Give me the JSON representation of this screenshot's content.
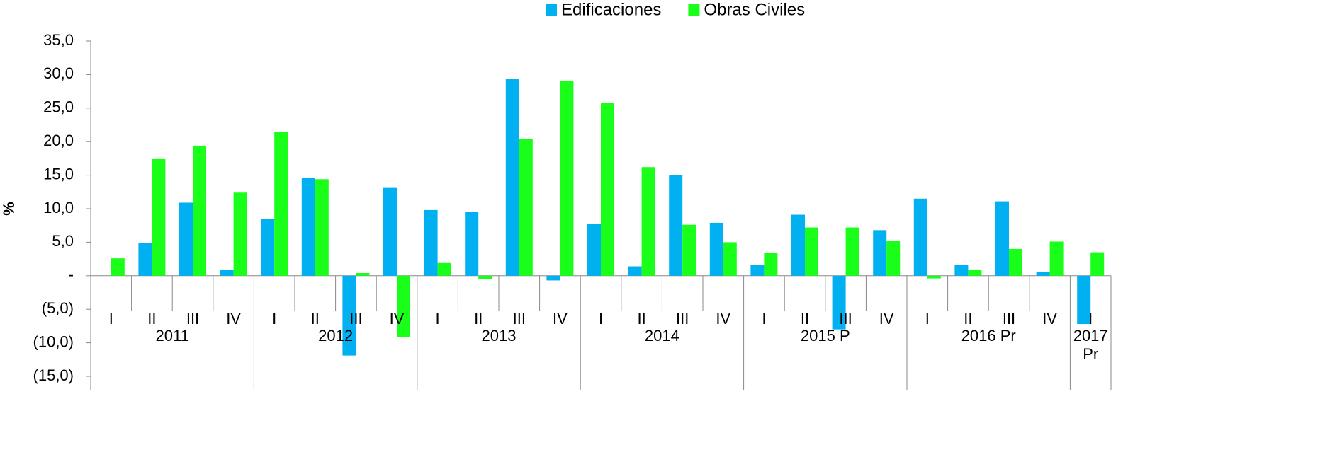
{
  "chart_data": {
    "type": "bar",
    "ylabel": "%",
    "groups": [
      {
        "label": "2011",
        "categories": [
          "I",
          "II",
          "III",
          "IV"
        ]
      },
      {
        "label": "2012",
        "categories": [
          "I",
          "II",
          "III",
          "IV"
        ]
      },
      {
        "label": "2013",
        "categories": [
          "I",
          "II",
          "III",
          "IV"
        ]
      },
      {
        "label": "2014",
        "categories": [
          "I",
          "II",
          "III",
          "IV"
        ]
      },
      {
        "label": "2015 P",
        "categories": [
          "I",
          "II",
          "III",
          "IV"
        ]
      },
      {
        "label": "2016 Pr",
        "categories": [
          "I",
          "II",
          "III",
          "IV"
        ]
      },
      {
        "label": "2017 Pr",
        "categories": [
          "I"
        ]
      }
    ],
    "series": [
      {
        "name": "Edificaciones",
        "color": "#00b0f0",
        "values": [
          0,
          4.9,
          10.9,
          0.9,
          8.5,
          14.6,
          -11.9,
          13.1,
          9.8,
          9.5,
          29.3,
          -0.7,
          7.7,
          1.4,
          15.0,
          7.9,
          1.6,
          9.1,
          -8.0,
          6.8,
          11.5,
          1.6,
          11.1,
          0.6,
          -7.2
        ]
      },
      {
        "name": "Obras Civiles",
        "color": "#1aff1a",
        "values": [
          2.6,
          17.4,
          19.4,
          12.4,
          21.5,
          14.4,
          0.4,
          -9.2,
          1.9,
          -0.5,
          20.4,
          29.1,
          25.8,
          16.2,
          7.6,
          5.0,
          3.4,
          7.2,
          7.2,
          5.2,
          -0.4,
          0.9,
          4.0,
          5.1,
          3.5
        ]
      }
    ],
    "ylim": [
      -15,
      35
    ],
    "yticks": [
      {
        "value": -15,
        "label": "(15,0)"
      },
      {
        "value": -10,
        "label": "(10,0)"
      },
      {
        "value": -5,
        "label": "(5,0)"
      },
      {
        "value": 0,
        "label": "-"
      },
      {
        "value": 5,
        "label": "5,0"
      },
      {
        "value": 10,
        "label": "10,0"
      },
      {
        "value": 15,
        "label": "15,0"
      },
      {
        "value": 20,
        "label": "20,0"
      },
      {
        "value": 25,
        "label": "25,0"
      },
      {
        "value": 30,
        "label": "30,0"
      },
      {
        "value": 35,
        "label": "35,0"
      }
    ],
    "legend": "top"
  }
}
